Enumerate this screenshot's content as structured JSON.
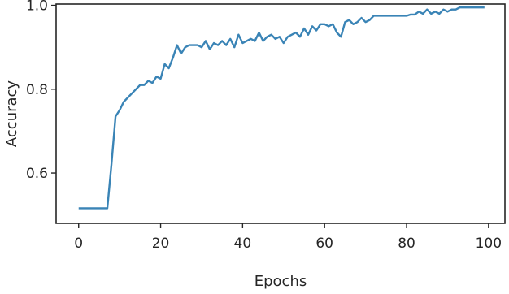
{
  "chart_data": {
    "type": "line",
    "title": "",
    "xlabel": "Epochs",
    "ylabel": "Accuracy",
    "xlim": [
      -5.5,
      104
    ],
    "ylim": [
      0.48,
      1.003
    ],
    "xticks": [
      0,
      20,
      40,
      60,
      80,
      100
    ],
    "yticks": [
      0.6,
      0.8,
      1.0
    ],
    "xtick_labels": [
      "0",
      "20",
      "40",
      "60",
      "80",
      "100"
    ],
    "ytick_labels": [
      "0.6",
      "0.8",
      "1.0"
    ],
    "grid": false,
    "legend": "none",
    "series": [
      {
        "color": "#3a84b6",
        "x": [
          0,
          1,
          2,
          3,
          4,
          5,
          6,
          7,
          8,
          9,
          10,
          11,
          12,
          13,
          14,
          15,
          16,
          17,
          18,
          19,
          20,
          21,
          22,
          23,
          24,
          25,
          26,
          27,
          28,
          29,
          30,
          31,
          32,
          33,
          34,
          35,
          36,
          37,
          38,
          39,
          40,
          41,
          42,
          43,
          44,
          45,
          46,
          47,
          48,
          49,
          50,
          51,
          52,
          53,
          54,
          55,
          56,
          57,
          58,
          59,
          60,
          61,
          62,
          63,
          64,
          65,
          66,
          67,
          68,
          69,
          70,
          71,
          72,
          73,
          74,
          75,
          76,
          77,
          78,
          79,
          80,
          81,
          82,
          83,
          84,
          85,
          86,
          87,
          88,
          89,
          90,
          91,
          92,
          93,
          94,
          95,
          96,
          97,
          98,
          99
        ],
        "values": [
          0.516,
          0.516,
          0.516,
          0.516,
          0.516,
          0.516,
          0.516,
          0.516,
          0.62,
          0.735,
          0.75,
          0.77,
          0.78,
          0.79,
          0.8,
          0.81,
          0.81,
          0.82,
          0.815,
          0.83,
          0.825,
          0.86,
          0.85,
          0.875,
          0.905,
          0.885,
          0.9,
          0.905,
          0.905,
          0.905,
          0.9,
          0.915,
          0.895,
          0.91,
          0.905,
          0.915,
          0.905,
          0.92,
          0.9,
          0.93,
          0.91,
          0.915,
          0.92,
          0.915,
          0.935,
          0.915,
          0.925,
          0.93,
          0.92,
          0.925,
          0.91,
          0.925,
          0.93,
          0.935,
          0.925,
          0.945,
          0.93,
          0.95,
          0.94,
          0.955,
          0.955,
          0.95,
          0.955,
          0.935,
          0.925,
          0.96,
          0.965,
          0.955,
          0.96,
          0.97,
          0.96,
          0.965,
          0.975,
          0.975,
          0.975,
          0.975,
          0.975,
          0.975,
          0.975,
          0.975,
          0.975,
          0.978,
          0.978,
          0.985,
          0.98,
          0.99,
          0.98,
          0.985,
          0.98,
          0.99,
          0.985,
          0.99,
          0.99,
          0.995,
          0.995,
          0.995,
          0.995,
          0.995,
          0.995,
          0.995
        ]
      }
    ]
  }
}
